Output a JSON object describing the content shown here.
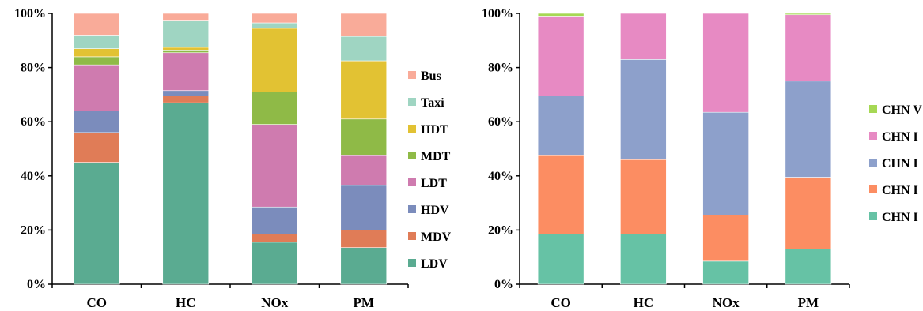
{
  "chart_data": [
    {
      "type": "bar",
      "stacked": true,
      "percent": true,
      "categories": [
        "CO",
        "HC",
        "NOx",
        "PM"
      ],
      "ylim": [
        0,
        100
      ],
      "yticks": [
        "0%",
        "20%",
        "40%",
        "60%",
        "80%",
        "100%"
      ],
      "legend_position": "right",
      "series": [
        {
          "name": "LDV",
          "color": "#5aab91",
          "values": [
            45.0,
            67.0,
            15.5,
            13.5
          ]
        },
        {
          "name": "MDV",
          "color": "#e07c57",
          "values": [
            11.0,
            2.5,
            3.0,
            6.5
          ]
        },
        {
          "name": "HDV",
          "color": "#7b8cbc",
          "values": [
            8.0,
            2.0,
            10.0,
            16.5
          ]
        },
        {
          "name": "LDT",
          "color": "#cf7baf",
          "values": [
            17.0,
            14.0,
            30.5,
            11.0
          ]
        },
        {
          "name": "MDT",
          "color": "#8fba47",
          "values": [
            3.0,
            1.0,
            12.0,
            13.5
          ]
        },
        {
          "name": "HDT",
          "color": "#e2c233",
          "values": [
            3.0,
            1.0,
            23.5,
            21.5
          ]
        },
        {
          "name": "Taxi",
          "color": "#9fd5c2",
          "values": [
            5.0,
            10.0,
            2.0,
            9.0
          ]
        },
        {
          "name": "Bus",
          "color": "#f9ab99",
          "values": [
            8.0,
            2.5,
            3.5,
            8.5
          ]
        }
      ]
    },
    {
      "type": "bar",
      "stacked": true,
      "percent": true,
      "categories": [
        "CO",
        "HC",
        "NOx",
        "PM"
      ],
      "ylim": [
        0,
        100
      ],
      "yticks": [
        "0%",
        "20%",
        "40%",
        "60%",
        "80%",
        "100%"
      ],
      "legend_position": "right",
      "series": [
        {
          "name": "CHN I",
          "color": "#66c2a5",
          "values": [
            18.5,
            18.5,
            8.5,
            13.0
          ]
        },
        {
          "name": "CHN I",
          "color": "#fc8d62",
          "values": [
            29.0,
            27.5,
            17.0,
            26.5
          ]
        },
        {
          "name": "CHN I",
          "color": "#8da0cb",
          "values": [
            22.0,
            37.0,
            38.0,
            35.5
          ]
        },
        {
          "name": "CHN I",
          "color": "#e78ac3",
          "values": [
            29.5,
            17.0,
            36.5,
            24.5
          ]
        },
        {
          "name": "CHN V",
          "color": "#a6d854",
          "values": [
            1.0,
            0.0,
            0.0,
            0.5
          ]
        }
      ]
    }
  ]
}
